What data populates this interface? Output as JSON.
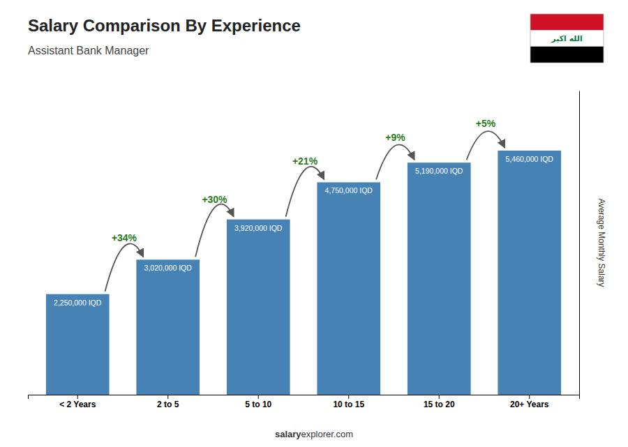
{
  "chart_data": {
    "type": "bar",
    "title": "Salary Comparison By Experience",
    "subtitle": "Assistant Bank Manager",
    "categories": [
      "< 2 Years",
      "2 to 5",
      "5 to 10",
      "10 to 15",
      "15 to 20",
      "20+ Years"
    ],
    "values": [
      2250000,
      3020000,
      3920000,
      4750000,
      5190000,
      5460000
    ],
    "value_labels": [
      "2,250,000 IQD",
      "3,020,000 IQD",
      "3,920,000 IQD",
      "4,750,000 IQD",
      "5,190,000 IQD",
      "5,460,000 IQD"
    ],
    "annotations": [
      "+34%",
      "+30%",
      "+21%",
      "+9%",
      "+5%"
    ],
    "ylabel": "Average Monthly Salary",
    "ylim": [
      0,
      6800000
    ],
    "tick_labels": "x",
    "grid": false,
    "footer": [
      "salary",
      "explorer.com"
    ],
    "flag_text": "الله اكبر"
  }
}
